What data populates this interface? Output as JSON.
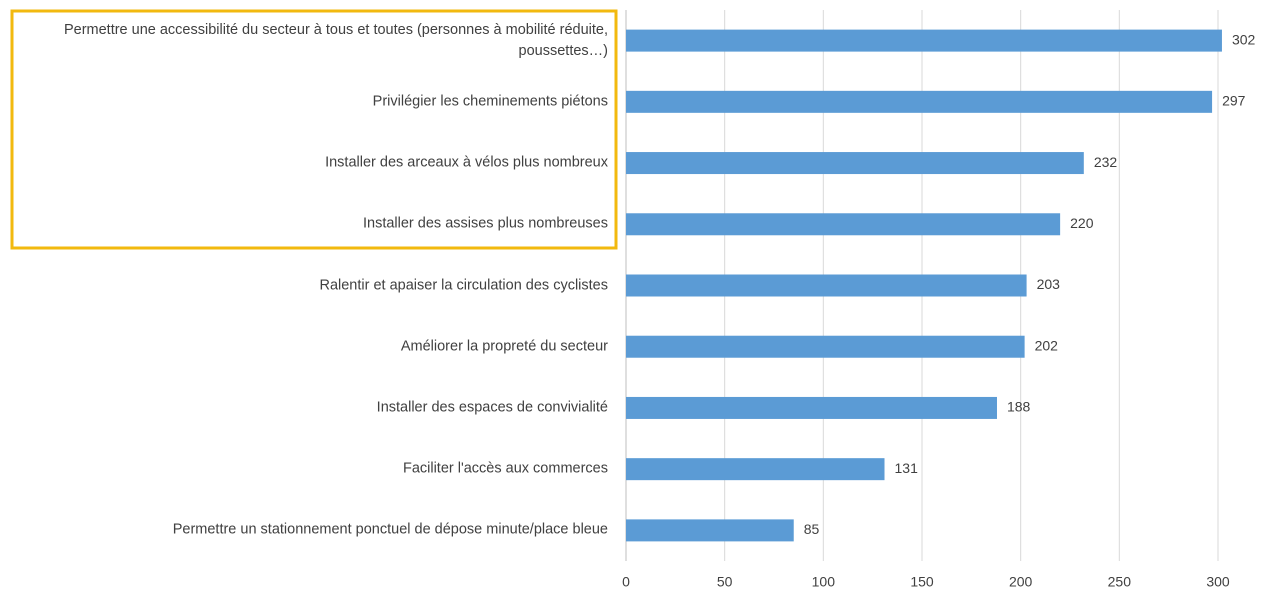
{
  "chart_data": {
    "type": "barh",
    "categories": [
      "Permettre une accessibilité du secteur à tous et toutes (personnes à mobilité réduite, poussettes…)",
      "Privilégier les cheminements piétons",
      "Installer des arceaux à vélos plus nombreux",
      "Installer des assises plus nombreuses",
      "Ralentir et apaiser la circulation des cyclistes",
      "Améliorer la propreté du secteur",
      "Installer des espaces de convivialité",
      "Faciliter l'accès aux commerces",
      "Permettre un stationnement ponctuel de dépose minute/place bleue"
    ],
    "values": [
      302,
      297,
      232,
      220,
      203,
      202,
      188,
      131,
      85
    ],
    "color": "#5b9bd5",
    "xlim": [
      0,
      300
    ],
    "xticks": [
      0,
      50,
      100,
      150,
      200,
      250,
      300
    ],
    "grid": true
  }
}
